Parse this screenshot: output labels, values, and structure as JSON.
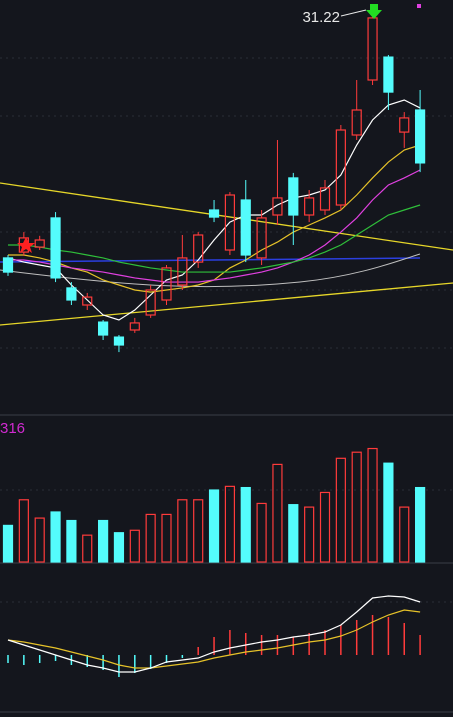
{
  "chart_data": {
    "type": "candlestick",
    "ylim": [
      21.56,
      31.4
    ],
    "up_color": "#ff3b3b",
    "down_color": "#54fcfc",
    "open": [
      25.21,
      25.35,
      25.47,
      26.17,
      24.49,
      24.08,
      23.67,
      23.31,
      23.48,
      23.84,
      24.2,
      24.56,
      25.11,
      26.36,
      25.4,
      26.6,
      25.21,
      26.24,
      27.13,
      26.24,
      26.36,
      26.48,
      28.16,
      29.48,
      30.03,
      28.23,
      28.76
    ],
    "high": [
      25.28,
      25.83,
      25.74,
      26.31,
      24.63,
      24.37,
      23.72,
      23.36,
      23.77,
      24.56,
      25.04,
      25.76,
      25.83,
      26.6,
      26.79,
      27.08,
      26.36,
      28.04,
      27.25,
      26.84,
      27.08,
      28.4,
      29.48,
      31.22,
      30.08,
      28.71,
      29.24
    ],
    "low": [
      24.78,
      25.26,
      25.4,
      24.63,
      24.08,
      23.96,
      23.24,
      22.95,
      23.41,
      23.77,
      24.08,
      24.44,
      24.97,
      26.07,
      25.28,
      25.11,
      25.04,
      26.0,
      25.52,
      26.07,
      26.24,
      26.36,
      28.04,
      29.36,
      28.76,
      27.85,
      27.27
    ],
    "close": [
      24.87,
      25.69,
      25.64,
      24.73,
      24.2,
      24.27,
      23.36,
      23.12,
      23.65,
      24.44,
      24.97,
      25.21,
      25.76,
      26.19,
      26.72,
      25.28,
      26.17,
      26.65,
      26.24,
      26.65,
      26.89,
      28.28,
      28.76,
      30.97,
      29.19,
      28.57,
      27.49
    ],
    "ma_lines": [
      {
        "color": "#ffffff",
        "values": [
          25.21,
          25.11,
          25.04,
          24.97,
          24.56,
          24.2,
          23.84,
          23.72,
          23.96,
          24.32,
          24.68,
          24.8,
          25.16,
          25.64,
          26.07,
          26.24,
          26.24,
          26.48,
          26.65,
          26.72,
          26.84,
          27.2,
          27.92,
          28.52,
          28.88,
          29.0,
          28.81
        ]
      },
      {
        "color": "#e6c229",
        "values": [
          25.28,
          25.28,
          25.21,
          25.11,
          24.97,
          24.87,
          24.68,
          24.56,
          24.44,
          24.39,
          24.44,
          24.49,
          24.56,
          24.68,
          24.97,
          25.16,
          25.4,
          25.59,
          25.83,
          26.0,
          26.17,
          26.36,
          26.72,
          27.13,
          27.51,
          27.8,
          27.92
        ]
      },
      {
        "color": "#e040e0",
        "values": [
          25.16,
          25.16,
          25.11,
          25.04,
          24.97,
          24.92,
          24.87,
          24.8,
          24.73,
          24.68,
          24.63,
          24.63,
          24.63,
          24.68,
          24.73,
          24.8,
          24.87,
          24.97,
          25.11,
          25.28,
          25.52,
          25.83,
          26.17,
          26.6,
          26.96,
          27.13,
          27.32
        ]
      },
      {
        "color": "#2fbf3a",
        "values": [
          25.52,
          25.52,
          25.47,
          25.4,
          25.35,
          25.28,
          25.21,
          25.11,
          25.04,
          24.97,
          24.92,
          24.87,
          24.87,
          24.87,
          24.87,
          24.92,
          24.97,
          25.04,
          25.11,
          25.21,
          25.35,
          25.52,
          25.76,
          26.0,
          26.24,
          26.36,
          26.48
        ]
      }
    ],
    "volume": {
      "label": "316",
      "ylim": [
        0,
        100
      ],
      "values": [
        30,
        51,
        36,
        41,
        34,
        22,
        34,
        24,
        26,
        39,
        39,
        51,
        51,
        59,
        62,
        61,
        48,
        80,
        47,
        45,
        57,
        85,
        90,
        93,
        81,
        45,
        61
      ]
    },
    "macd": {
      "ylim": [
        -45,
        60
      ],
      "histogram": [
        -8,
        -10,
        -8,
        -6,
        -10,
        -12,
        -15,
        -22,
        -18,
        -14,
        -8,
        -3,
        8,
        18,
        25,
        22,
        20,
        20,
        18,
        22,
        25,
        30,
        35,
        40,
        38,
        32,
        20
      ],
      "dif": [
        15,
        10,
        5,
        0,
        -5,
        -10,
        -13,
        -17,
        -17,
        -13,
        -7,
        -5,
        -3,
        3,
        7,
        10,
        13,
        15,
        18,
        20,
        23,
        30,
        43,
        57,
        59,
        58,
        53
      ],
      "dea": [
        15,
        13,
        10,
        7,
        3,
        -1,
        -5,
        -10,
        -13,
        -13,
        -11,
        -9,
        -7,
        -3,
        0,
        3,
        5,
        7,
        10,
        13,
        15,
        19,
        25,
        33,
        40,
        45,
        43
      ],
      "dif_color": "#ffffff",
      "dea_color": "#e6c229"
    }
  }
}
